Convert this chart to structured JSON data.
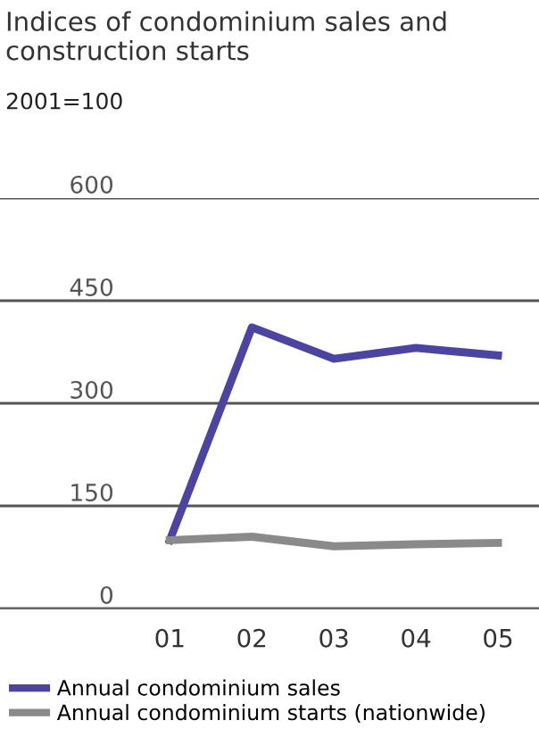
{
  "chart_data": {
    "type": "line",
    "title": "Indices of condominium sales and construction starts",
    "ylabel": "2001=100",
    "categories": [
      "01",
      "02",
      "03",
      "04",
      "05"
    ],
    "series": [
      {
        "name": "Annual condominium sales",
        "color": "#4b45a1",
        "values": [
          100,
          411,
          365,
          381,
          370
        ]
      },
      {
        "name": "Annual condominium starts (nationwide)",
        "color": "#8a8a8a",
        "values": [
          100,
          105,
          91,
          94,
          96
        ]
      }
    ],
    "ylim": [
      0,
      600
    ],
    "yticks": [
      0,
      150,
      300,
      450,
      600
    ],
    "grid": "y",
    "legend": "bottom",
    "marker": "none",
    "line_style": "solid"
  }
}
